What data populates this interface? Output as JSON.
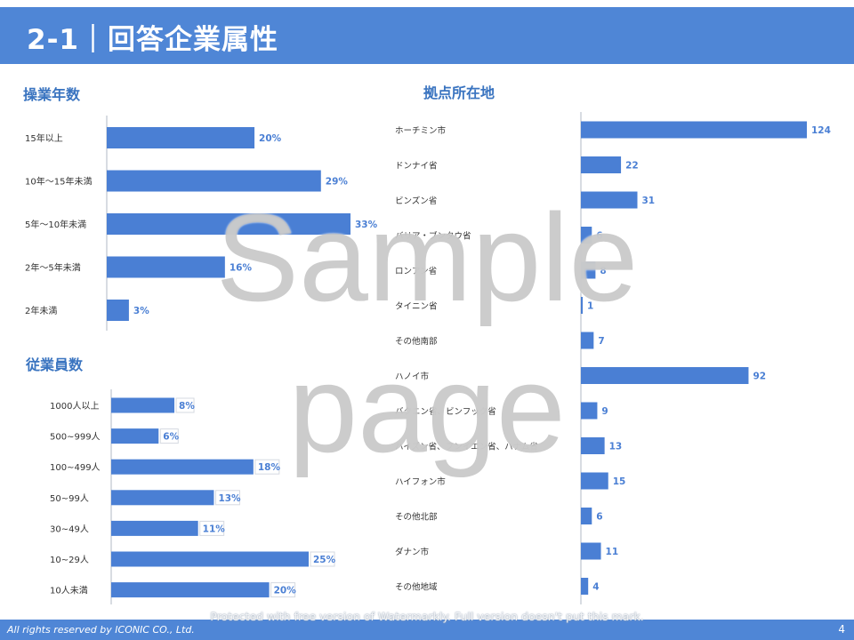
{
  "header": {
    "title": "2-1｜回答企業属性"
  },
  "sections": {
    "years": "操業年数",
    "employees": "従業員数",
    "locations": "拠点所在地"
  },
  "colors": {
    "bar": "#4a7fd4",
    "label": "#4a7fd4",
    "header": "#4f86d6",
    "axis": "#b0b8c4"
  },
  "chart_data": [
    {
      "type": "bar",
      "orientation": "horizontal",
      "title": "操業年数",
      "categories": [
        "15年以上",
        "10年～15年未満",
        "5年～10年未満",
        "2年～5年未満",
        "2年未満"
      ],
      "values": [
        20,
        29,
        33,
        16,
        3
      ],
      "value_labels": [
        "20%",
        "29%",
        "33%",
        "16%",
        "3%"
      ],
      "unit": "%",
      "xlim": [
        0,
        33
      ]
    },
    {
      "type": "bar",
      "orientation": "horizontal",
      "title": "従業員数",
      "categories": [
        "1000人以上",
        "500~999人",
        "100~499人",
        "50~99人",
        "30~49人",
        "10~29人",
        "10人未満"
      ],
      "values": [
        8,
        6,
        18,
        13,
        11,
        25,
        20
      ],
      "value_labels": [
        "8%",
        "6%",
        "18%",
        "13%",
        "11%",
        "25%",
        "20%"
      ],
      "unit": "%",
      "xlim": [
        0,
        25
      ]
    },
    {
      "type": "bar",
      "orientation": "horizontal",
      "title": "拠点所在地",
      "categories": [
        "ホーチミン市",
        "ドンナイ省",
        "ビンズン省",
        "バリア・ブンタウ省",
        "ロンアン省",
        "タイニン省",
        "その他南部",
        "ハノイ市",
        "バクニン省、ビンフック省",
        "ハイズン省、フンイエン省、ハナム省",
        "ハイフォン市",
        "その他北部",
        "ダナン市",
        "その他地域"
      ],
      "values": [
        124,
        22,
        31,
        6,
        8,
        1,
        7,
        92,
        9,
        13,
        15,
        6,
        11,
        4
      ],
      "value_labels": [
        "124",
        "22",
        "31",
        "6",
        "8",
        "1",
        "7",
        "92",
        "9",
        "13",
        "15",
        "6",
        "11",
        "4"
      ],
      "xlim": [
        0,
        124
      ]
    }
  ],
  "watermark": {
    "line1": "Sample",
    "line2": "page"
  },
  "notice": "Protected with free version of Watermarkly. Full version doesn't put this mark.",
  "footer": {
    "copyright": "All rights reserved by ICONIC CO., Ltd.",
    "page": "4"
  }
}
